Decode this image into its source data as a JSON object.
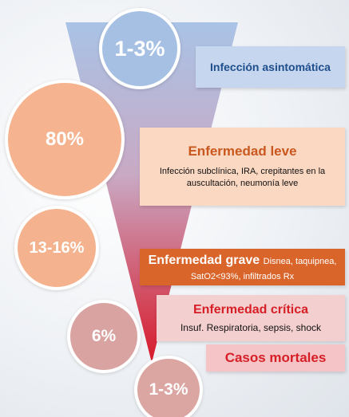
{
  "stages": [
    {
      "percentage": "1-3%",
      "title": "Infección asintomática"
    },
    {
      "percentage": "80%",
      "title": "Enfermedad leve",
      "description": "Infección subclínica, IRA, crepitantes en la auscultación, neumonía leve"
    },
    {
      "percentage": "13-16%",
      "title": "Enfermedad grave",
      "description": "Disnea, taquipnea, SatO2<93%, infiltrados Rx"
    },
    {
      "percentage": "6%",
      "title": "Enfermedad crítica",
      "description": "Insuf. Respiratoria, sepsis, shock"
    },
    {
      "percentage": "1-3%",
      "title": "Casos mortales"
    }
  ]
}
